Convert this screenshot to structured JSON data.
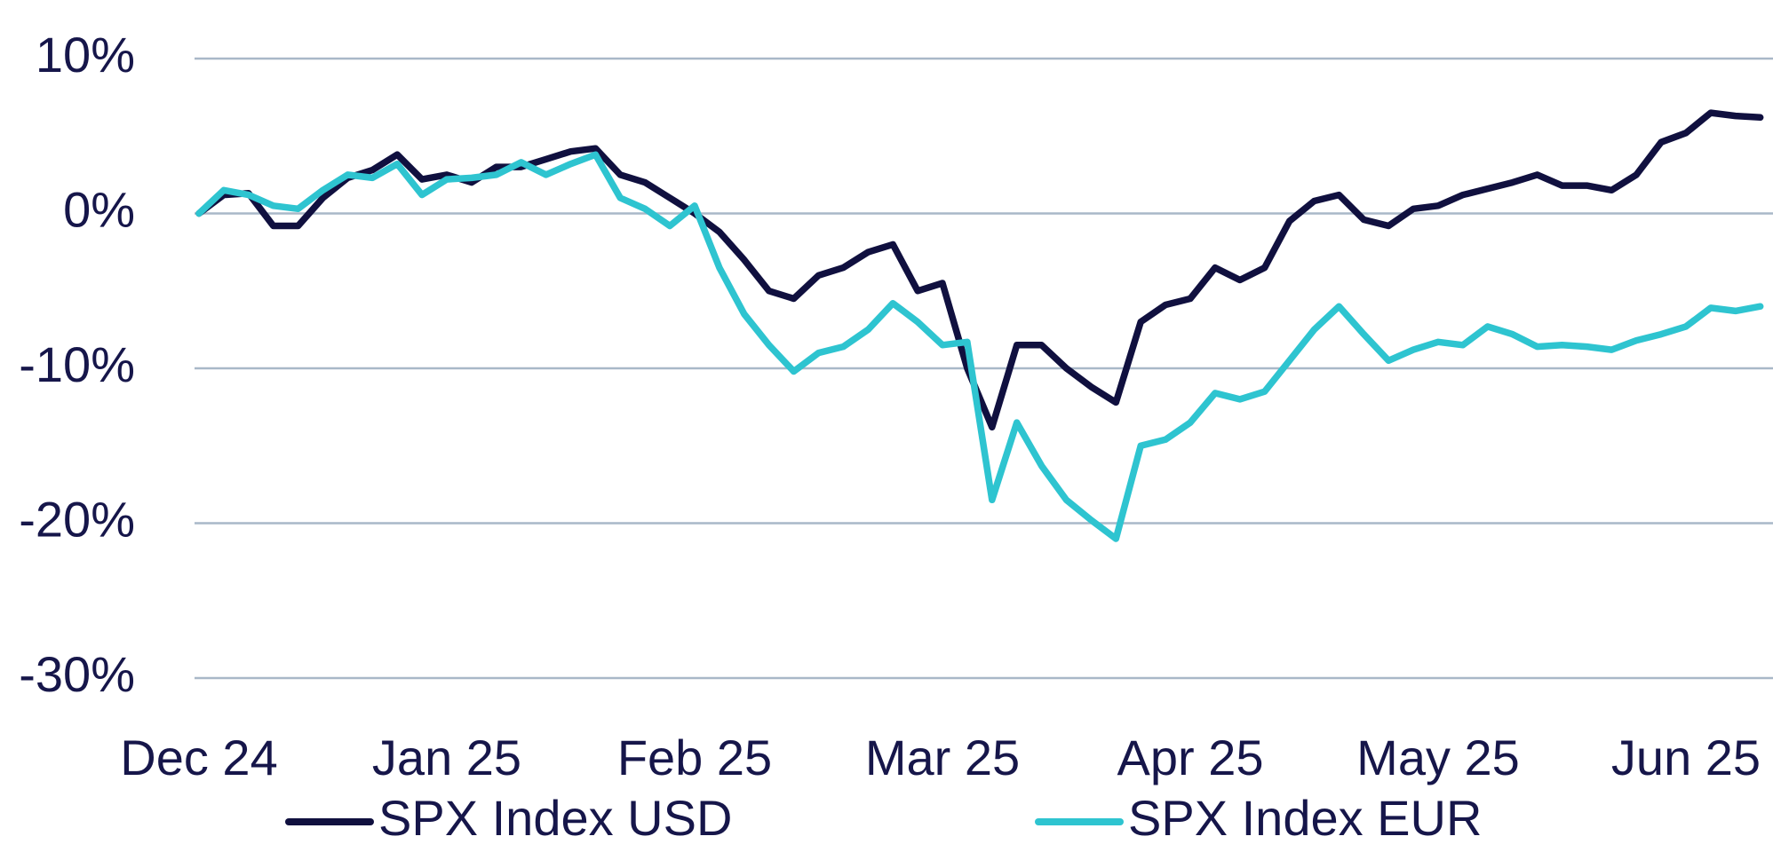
{
  "chart_data": {
    "type": "line",
    "categories": [
      "Dec 24",
      null,
      null,
      null,
      null,
      null,
      null,
      null,
      null,
      null,
      "Jan 25",
      null,
      null,
      null,
      null,
      null,
      null,
      null,
      null,
      null,
      "Feb 25",
      null,
      null,
      null,
      null,
      null,
      null,
      null,
      null,
      null,
      "Mar 25",
      null,
      null,
      null,
      null,
      null,
      null,
      null,
      null,
      null,
      "Apr 25",
      null,
      null,
      null,
      null,
      null,
      null,
      null,
      null,
      null,
      "May 25",
      null,
      null,
      null,
      null,
      null,
      null,
      null,
      null,
      null,
      "Jun 25",
      null,
      null,
      null
    ],
    "series": [
      {
        "name": "SPX Index USD",
        "color": "#10103f",
        "values": [
          0,
          1.2,
          1.3,
          -0.8,
          -0.8,
          1.0,
          2.3,
          2.8,
          3.8,
          2.2,
          2.5,
          2.0,
          3.0,
          3.0,
          3.5,
          4.0,
          4.2,
          2.5,
          2.0,
          1.0,
          0.0,
          -1.2,
          -3.0,
          -5.0,
          -5.5,
          -4.0,
          -3.5,
          -2.5,
          -2.0,
          -5.0,
          -4.5,
          -10.0,
          -13.8,
          -8.5,
          -8.5,
          -10.0,
          -11.2,
          -12.2,
          -7.0,
          -5.9,
          -5.5,
          -3.5,
          -4.3,
          -3.5,
          -0.5,
          0.8,
          1.2,
          -0.4,
          -0.8,
          0.3,
          0.5,
          1.2,
          1.6,
          2.0,
          2.5,
          1.8,
          1.8,
          1.5,
          2.5,
          4.6,
          5.2,
          6.5,
          6.3,
          6.2
        ]
      },
      {
        "name": "SPX Index EUR",
        "color": "#2ec4d0",
        "values": [
          0,
          1.5,
          1.2,
          0.5,
          0.3,
          1.5,
          2.5,
          2.3,
          3.2,
          1.2,
          2.2,
          2.3,
          2.5,
          3.3,
          2.5,
          3.2,
          3.8,
          1.0,
          0.3,
          -0.8,
          0.5,
          -3.5,
          -6.5,
          -8.5,
          -10.2,
          -9.0,
          -8.6,
          -7.5,
          -5.8,
          -7.0,
          -8.5,
          -8.3,
          -18.5,
          -13.5,
          -16.3,
          -18.5,
          -19.8,
          -21.0,
          -15.0,
          -14.6,
          -13.5,
          -11.6,
          -12.0,
          -11.5,
          -9.5,
          -7.5,
          -6.0,
          -7.8,
          -9.5,
          -8.8,
          -8.3,
          -8.5,
          -7.3,
          -7.8,
          -8.6,
          -8.5,
          -8.6,
          -8.8,
          -8.2,
          -7.8,
          -7.3,
          -6.1,
          -6.3,
          -6.0
        ]
      }
    ],
    "ylim": [
      -30,
      10
    ],
    "yticks": [
      {
        "value": -30,
        "label": "-30%"
      },
      {
        "value": -20,
        "label": "-20%"
      },
      {
        "value": -10,
        "label": "-10%"
      },
      {
        "value": 0,
        "label": "0%"
      },
      {
        "value": 10,
        "label": "10%"
      }
    ],
    "grid": true,
    "legend": "bottom"
  }
}
